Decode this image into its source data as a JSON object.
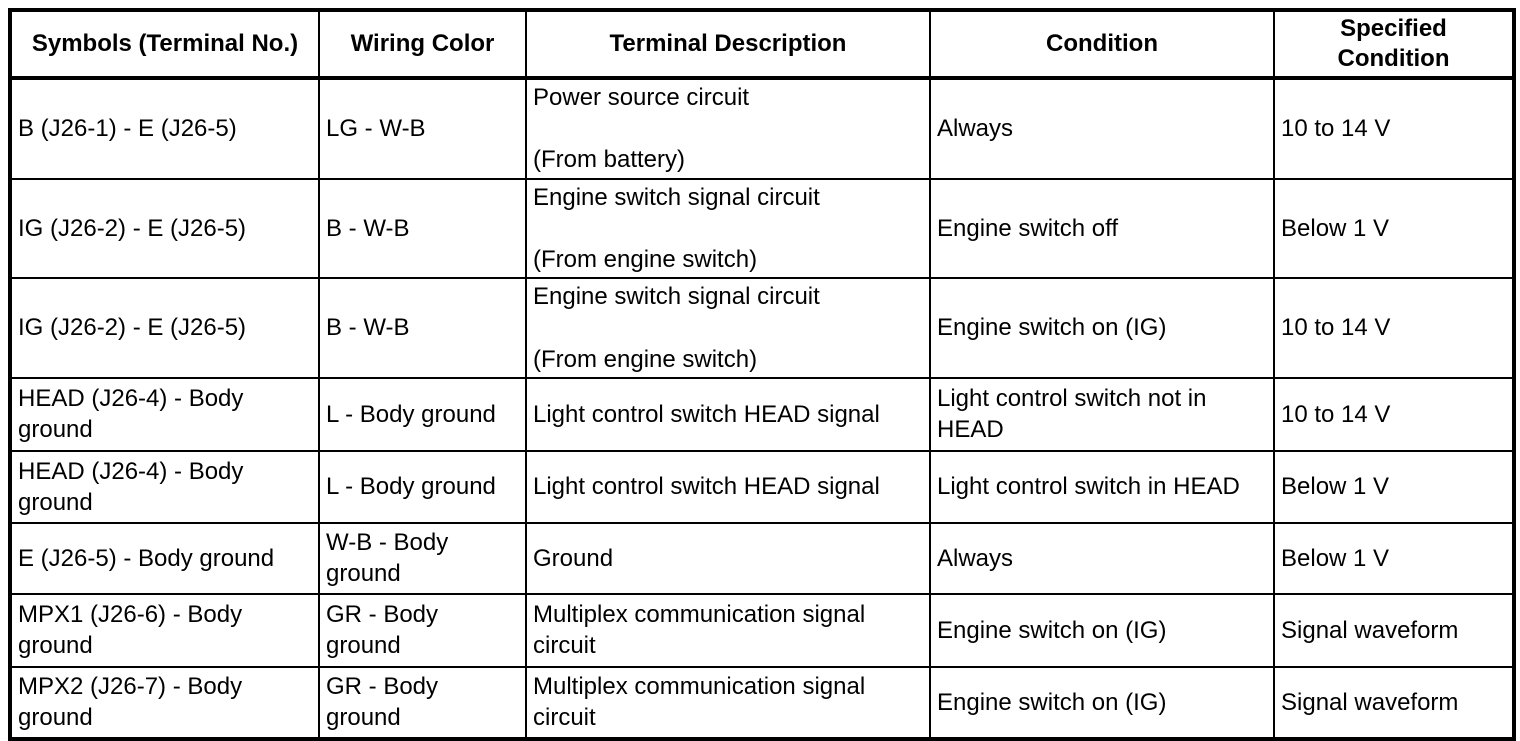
{
  "colors": {
    "background": "#ffffff",
    "text": "#000000",
    "border": "#000000"
  },
  "table": {
    "headers": [
      {
        "label": "Symbols (Terminal No.)"
      },
      {
        "label": "Wiring Color"
      },
      {
        "label": "Terminal Description"
      },
      {
        "label": "Condition"
      },
      {
        "label": "Specified\nCondition"
      }
    ],
    "rows": [
      {
        "symbols": "B (J26-1) - E (J26-5)",
        "wiring_color": "LG - W-B",
        "description": "Power source circuit\n\n(From battery)",
        "condition": "Always",
        "specified_condition": "10 to 14 V"
      },
      {
        "symbols": "IG (J26-2) - E (J26-5)",
        "wiring_color": "B - W-B",
        "description": "Engine switch signal circuit\n\n(From engine switch)",
        "condition": "Engine switch off",
        "specified_condition": "Below 1 V"
      },
      {
        "symbols": "IG (J26-2) - E (J26-5)",
        "wiring_color": "B - W-B",
        "description": "Engine switch signal circuit\n\n(From engine switch)",
        "condition": "Engine switch on (IG)",
        "specified_condition": "10 to 14 V"
      },
      {
        "symbols": "HEAD (J26-4) - Body\nground",
        "wiring_color": "L - Body ground",
        "description": "Light control switch HEAD signal",
        "condition": "Light control switch not in\nHEAD",
        "specified_condition": "10 to 14 V"
      },
      {
        "symbols": "HEAD (J26-4) - Body\nground",
        "wiring_color": "L - Body ground",
        "description": "Light control switch HEAD signal",
        "condition": "Light control switch in HEAD",
        "specified_condition": "Below 1 V"
      },
      {
        "symbols": "E (J26-5) - Body ground",
        "wiring_color": "W-B - Body\nground",
        "description": "Ground",
        "condition": "Always",
        "specified_condition": "Below 1 V"
      },
      {
        "symbols": "MPX1 (J26-6) - Body\nground",
        "wiring_color": "GR - Body\nground",
        "description": "Multiplex communication signal\ncircuit",
        "condition": "Engine switch on (IG)",
        "specified_condition": "Signal waveform"
      },
      {
        "symbols": "MPX2 (J26-7) - Body\nground",
        "wiring_color": "GR - Body\nground",
        "description": "Multiplex communication signal\ncircuit",
        "condition": "Engine switch on (IG)",
        "specified_condition": "Signal waveform"
      }
    ]
  }
}
